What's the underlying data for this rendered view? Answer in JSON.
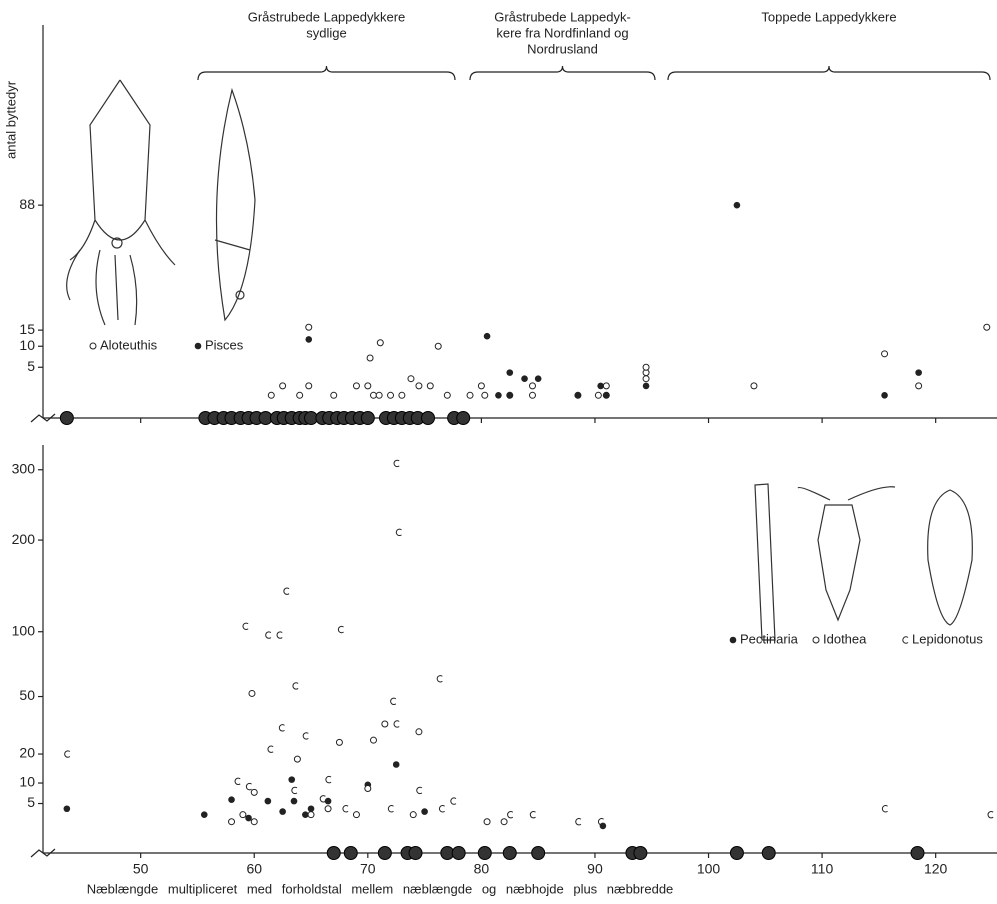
{
  "chart_data": [
    {
      "type": "scatter",
      "ylabel": "antal byttedyr",
      "groups": [
        {
          "lines": [
            "Gråstrubede Lappedykkere",
            "sydlige"
          ]
        },
        {
          "lines": [
            "Gråstrubede Lappedyk-",
            "kere fra Nordfinland og",
            "Nordrusland"
          ]
        },
        {
          "lines": [
            "Toppede Lappedykkere"
          ]
        }
      ],
      "xlim": [
        41.4,
        125.4
      ],
      "xticks": [
        50,
        60,
        70,
        80,
        90,
        100,
        110,
        120
      ],
      "ylim": [
        0,
        300
      ],
      "yscale": "sqrt",
      "yticks": [
        5,
        10,
        15,
        88
      ],
      "legend": "top-left",
      "series": [
        {
          "name": "Aloteuthis",
          "marker": "open",
          "color": "#222",
          "x": [
            64.8,
            64.8,
            71.1,
            70.2,
            76.2,
            73.8,
            61.5,
            67,
            69,
            70,
            70.5,
            71,
            72,
            73,
            74.5,
            75.5,
            77,
            79,
            80.3,
            80,
            82.5,
            84.5,
            84.5,
            88.5,
            90.3,
            91,
            91,
            94.5,
            94.5,
            94.5,
            104,
            115.5,
            118.5,
            124.5,
            64,
            62.5
          ],
          "values": [
            16,
            2,
            11,
            7,
            10,
            3,
            1,
            1,
            2,
            2,
            1,
            1,
            1,
            1,
            2,
            2,
            1,
            1,
            1,
            2,
            1,
            2,
            1,
            1,
            1,
            2,
            1,
            3,
            4,
            5,
            2,
            8,
            2,
            16,
            1,
            2
          ]
        },
        {
          "name": "Pisces",
          "marker": "filled",
          "color": "#222",
          "x": [
            64.8,
            80.5,
            82.5,
            83.8,
            85,
            81.5,
            82.5,
            88.5,
            90.5,
            91,
            94.5,
            102.5,
            118.5,
            115.5
          ],
          "values": [
            12,
            13,
            4,
            3,
            3,
            1,
            1,
            1,
            2,
            1,
            2,
            88,
            4,
            1
          ]
        },
        {
          "marker": "big",
          "color": "#333",
          "x": [
            43.5,
            55.7,
            56.5,
            57.3,
            58.0,
            58.8,
            59.5,
            60.2,
            61.0,
            62.0,
            62.6,
            63.3,
            64.0,
            64.5,
            65.0,
            66.0,
            66.6,
            67.3,
            67.9,
            68.6,
            69.3,
            70.0,
            71.6,
            72.3,
            73.0,
            73.7,
            74.4,
            75.3,
            77.6,
            78.4
          ],
          "values": [
            0,
            0,
            0,
            0,
            0,
            0,
            0,
            0,
            0,
            0,
            0,
            0,
            0,
            0,
            0,
            0,
            0,
            0,
            0,
            0,
            0,
            0,
            0,
            0,
            0,
            0,
            0,
            0,
            0,
            0
          ]
        }
      ]
    },
    {
      "type": "scatter",
      "xlabel": "Næblængde multipliceret med forholdstal mellem næblængde og næbhojde plus næbbredde",
      "xlim": [
        41.4,
        125.4
      ],
      "xticks": [
        50,
        60,
        70,
        80,
        90,
        100,
        110,
        120
      ],
      "ylim": [
        0,
        340
      ],
      "yscale": "sqrt",
      "yticks": [
        5,
        10,
        20,
        50,
        100,
        200,
        300
      ],
      "legend": "right",
      "series": [
        {
          "name": "Pectinaria",
          "marker": "filled",
          "color": "#222",
          "x": [
            43.5,
            58,
            61.2,
            63.3,
            70,
            72.5,
            63.5,
            65,
            66.5,
            55.6,
            59.5,
            62.5,
            64.5,
            75,
            80.5,
            90.7
          ],
          "values": [
            4,
            5.8,
            5.5,
            11,
            9.5,
            16,
            5.5,
            4,
            5.5,
            3,
            2.5,
            3.5,
            3,
            3.5,
            2,
            1.5
          ]
        },
        {
          "name": "Idothea",
          "marker": "open",
          "color": "#222",
          "x": [
            59.8,
            63.8,
            67.5,
            70.5,
            71.5,
            74.5,
            60,
            70,
            66.5,
            59,
            58,
            60,
            65,
            69,
            74,
            80.5,
            82
          ],
          "values": [
            52,
            18,
            25,
            26,
            34,
            30,
            7.5,
            8.5,
            4,
            3,
            2,
            2,
            3,
            3,
            3,
            2,
            2
          ]
        },
        {
          "name": "Lepidonotus",
          "marker": "c",
          "color": "#222",
          "x": [
            43.5,
            62.8,
            59.2,
            61.2,
            62.2,
            67.6,
            63.6,
            62.4,
            64.5,
            61.4,
            72.5,
            72.7,
            72.2,
            72.5,
            76.3,
            58.5,
            59.5,
            63.5,
            66.5,
            66,
            68,
            72,
            74.5,
            77.5,
            76.5,
            82.5,
            84.5,
            88.5,
            90.5,
            115.5,
            124.8
          ],
          "values": [
            20,
            140,
            105,
            97,
            97,
            102,
            57,
            32,
            28,
            22,
            310,
            210,
            47,
            34,
            62,
            10.5,
            9,
            8,
            11,
            6,
            4,
            4,
            8,
            5.5,
            4,
            3,
            3,
            2,
            2,
            4,
            3
          ]
        },
        {
          "marker": "big",
          "color": "#333",
          "x": [
            67,
            68.5,
            71.5,
            73.5,
            74.2,
            77,
            78,
            80.3,
            82.5,
            85,
            93.3,
            94,
            102.5,
            105.3,
            118.4
          ],
          "values": [
            0,
            0,
            0,
            0,
            0,
            0,
            0,
            0,
            0,
            0,
            0,
            0,
            0,
            0,
            0
          ]
        }
      ]
    }
  ]
}
